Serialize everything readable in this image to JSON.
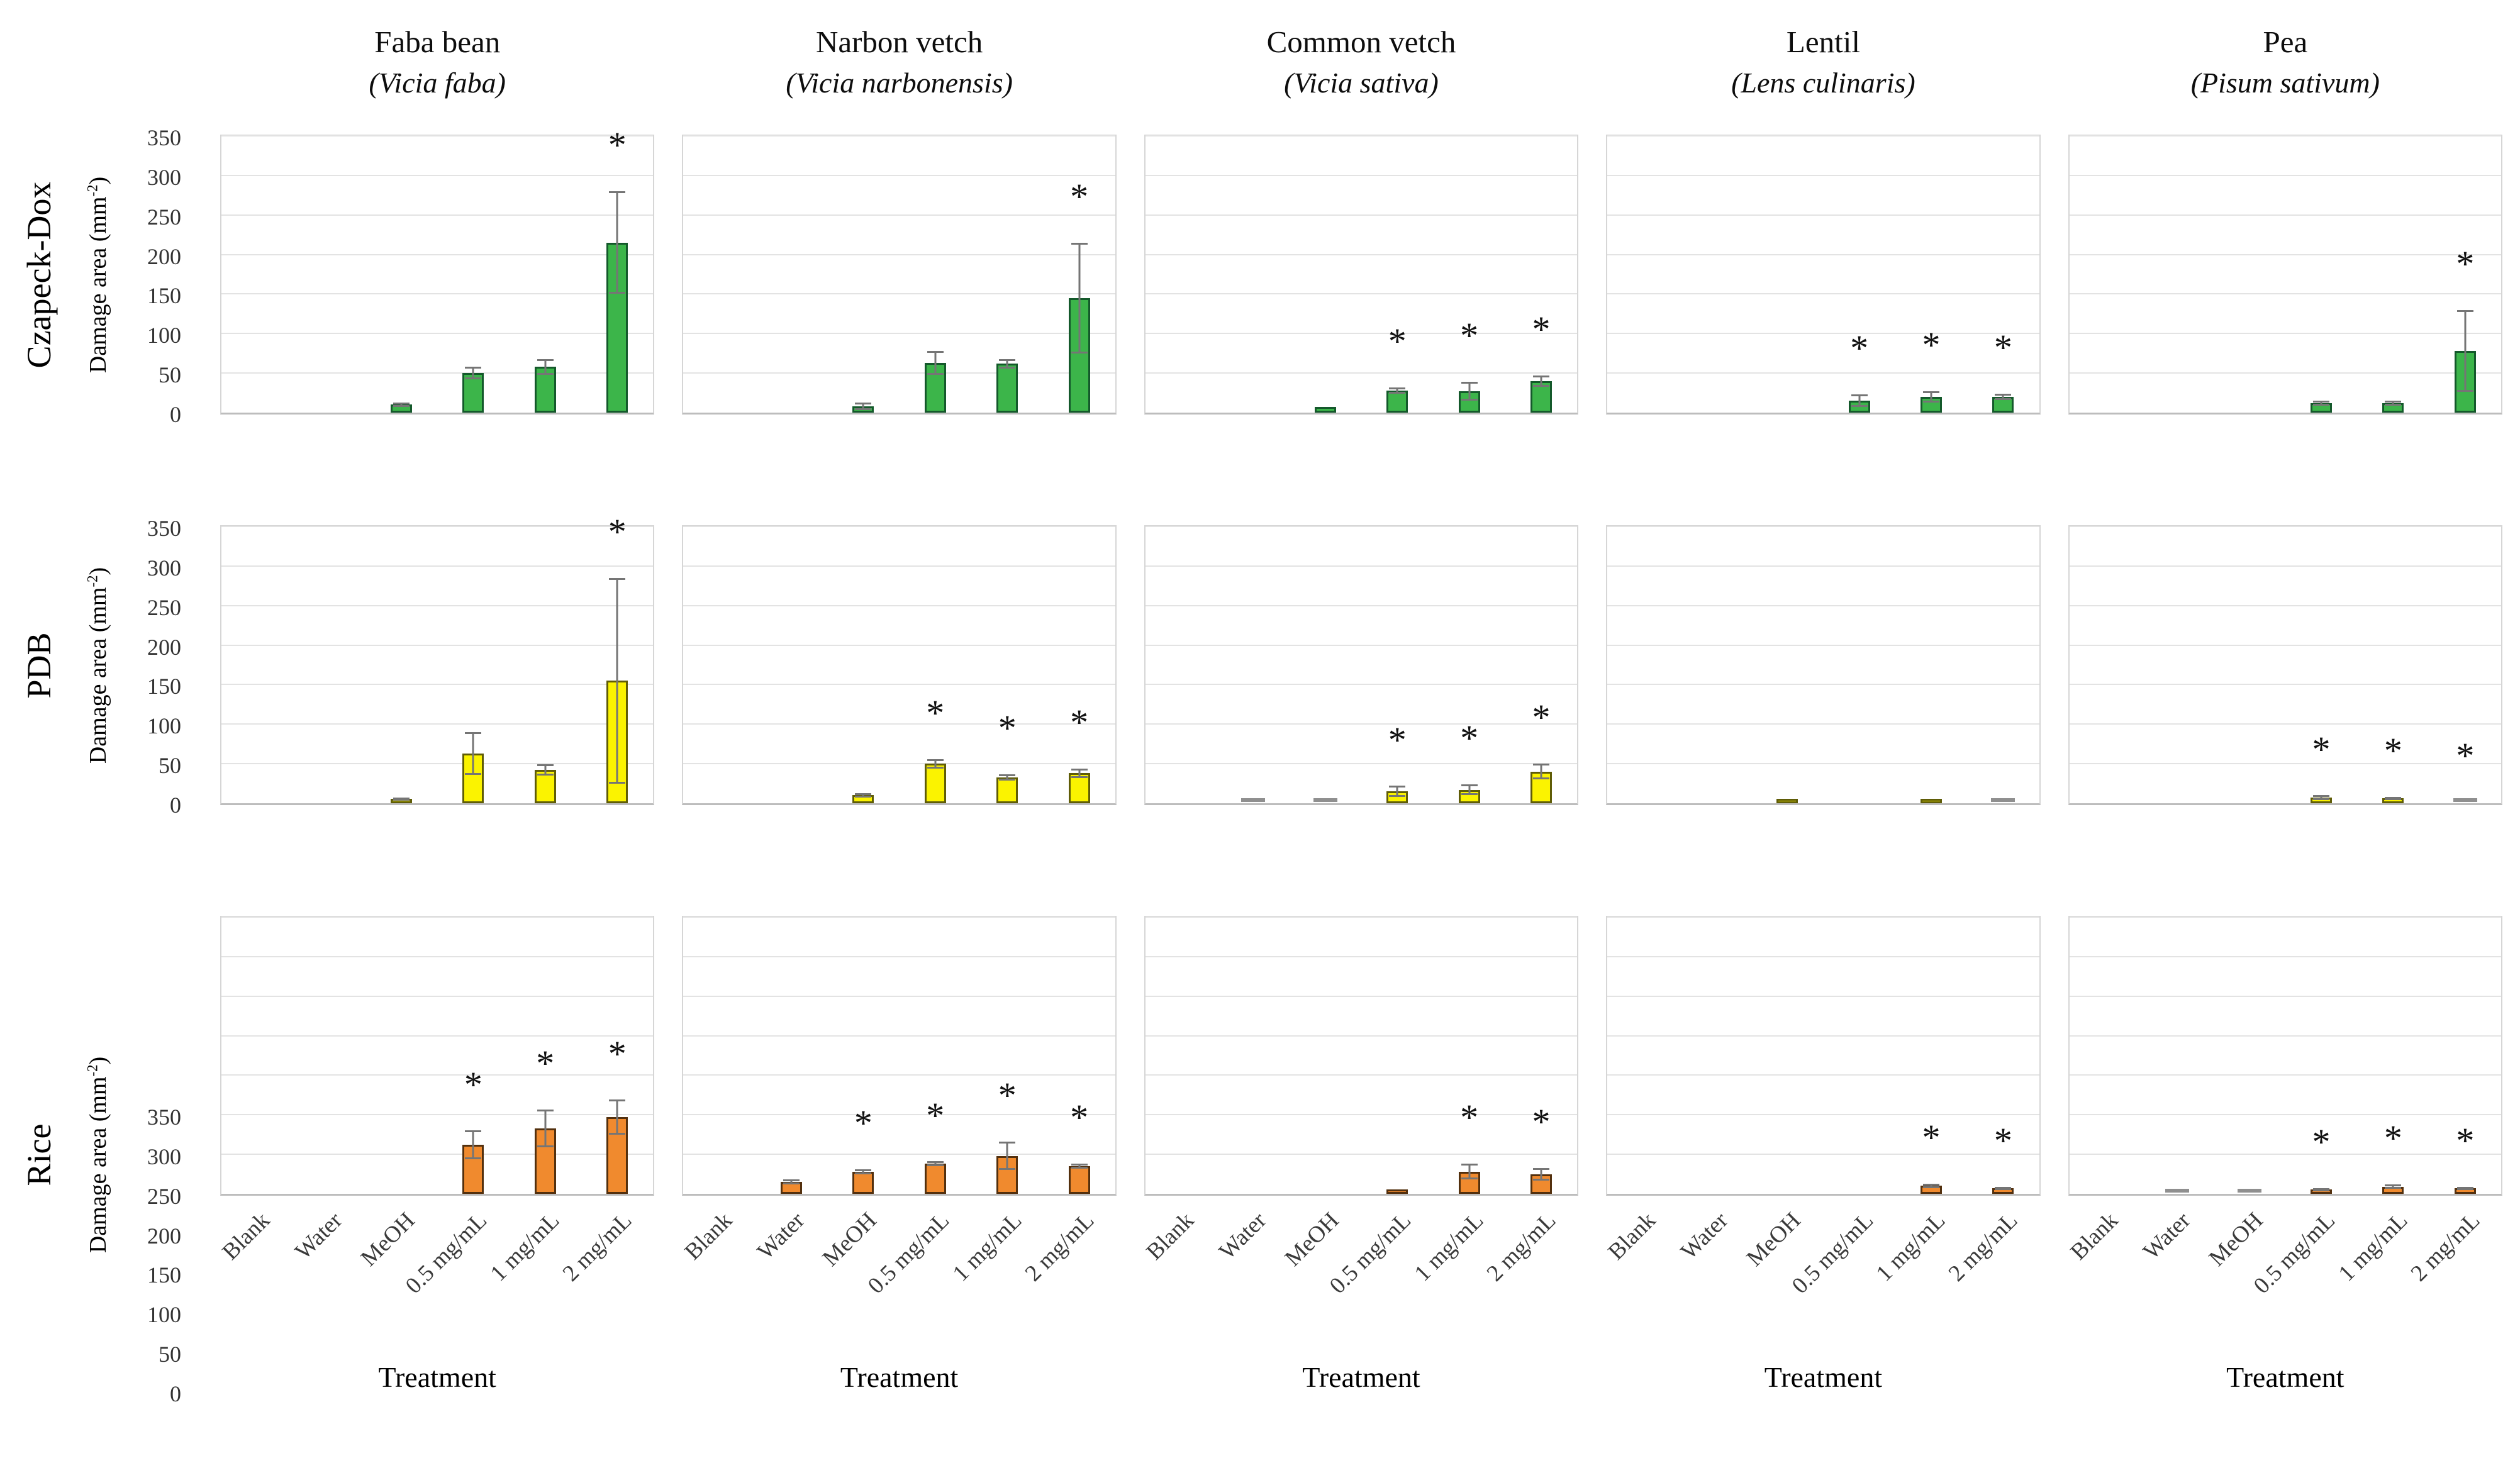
{
  "figure": {
    "ylabel": {
      "prefix": "Damage area (mm",
      "sup": "-2",
      "suffix": ")"
    },
    "xlabel": "Treatment",
    "x_categories": [
      "Blank",
      "Water",
      "MeOH",
      "0.5 mg/mL",
      "1 mg/mL",
      "2 mg/mL"
    ],
    "y_ticks": [
      0,
      50,
      100,
      150,
      200,
      250,
      300,
      350
    ],
    "ylim": [
      0,
      350
    ],
    "significance_symbol": "*",
    "grid": true,
    "columns": [
      {
        "name": "Faba bean",
        "species": "(Vicia faba)"
      },
      {
        "name": "Narbon vetch",
        "species": "(Vicia narbonensis)"
      },
      {
        "name": "Common vetch",
        "species": "(Vicia sativa)"
      },
      {
        "name": "Lentil",
        "species": "(Lens culinaris)"
      },
      {
        "name": "Pea",
        "species": "(Pisum sativum)"
      }
    ],
    "rows": [
      {
        "label": "Czapeck-Dox",
        "fill": "#3cb54a",
        "border": "#14592b"
      },
      {
        "label": "PDB",
        "fill": "#fbf300",
        "border": "#5f5c07"
      },
      {
        "label": "Rice",
        "fill": "#f08a2e",
        "border": "#53300e"
      }
    ],
    "colors": {
      "error_bar": "#757575",
      "gridline": "#e3e3e3",
      "axis_line": "#bdbdbd",
      "gray_dash": "#8f8f8f"
    }
  },
  "chart_data": [
    {
      "type": "bar",
      "medium": "Czapeck-Dox",
      "plant": "Faba bean",
      "species": "Vicia faba",
      "categories": [
        "Blank",
        "Water",
        "MeOH",
        "0.5 mg/mL",
        "1 mg/mL",
        "2 mg/mL"
      ],
      "values": [
        0,
        0,
        10,
        50,
        58,
        215
      ],
      "errors": [
        0,
        0,
        3,
        8,
        10,
        65
      ],
      "significant": [
        false,
        false,
        false,
        false,
        false,
        true
      ],
      "gray_dash": [
        false,
        false,
        false,
        false,
        false,
        false
      ],
      "ylim": [
        0,
        350
      ]
    },
    {
      "type": "bar",
      "medium": "Czapeck-Dox",
      "plant": "Narbon vetch",
      "species": "Vicia narbonensis",
      "categories": [
        "Blank",
        "Water",
        "MeOH",
        "0.5 mg/mL",
        "1 mg/mL",
        "2 mg/mL"
      ],
      "values": [
        0,
        0,
        8,
        63,
        62,
        145
      ],
      "errors": [
        0,
        0,
        5,
        15,
        6,
        70
      ],
      "significant": [
        false,
        false,
        false,
        false,
        false,
        true
      ],
      "gray_dash": [
        false,
        false,
        false,
        false,
        false,
        false
      ],
      "ylim": [
        0,
        350
      ]
    },
    {
      "type": "bar",
      "medium": "Czapeck-Dox",
      "plant": "Common vetch",
      "species": "Vicia sativa",
      "categories": [
        "Blank",
        "Water",
        "MeOH",
        "0.5 mg/mL",
        "1 mg/mL",
        "2 mg/mL"
      ],
      "values": [
        0,
        0,
        7,
        28,
        27,
        40
      ],
      "errors": [
        0,
        0,
        0,
        4,
        12,
        7
      ],
      "significant": [
        false,
        false,
        false,
        true,
        true,
        true
      ],
      "gray_dash": [
        false,
        false,
        false,
        false,
        false,
        false
      ],
      "ylim": [
        0,
        350
      ]
    },
    {
      "type": "bar",
      "medium": "Czapeck-Dox",
      "plant": "Lentil",
      "species": "Lens culinaris",
      "categories": [
        "Blank",
        "Water",
        "MeOH",
        "0.5 mg/mL",
        "1 mg/mL",
        "2 mg/mL"
      ],
      "values": [
        0,
        0,
        0,
        15,
        20,
        20
      ],
      "errors": [
        0,
        0,
        0,
        8,
        7,
        4
      ],
      "significant": [
        false,
        false,
        false,
        true,
        true,
        true
      ],
      "gray_dash": [
        false,
        false,
        false,
        false,
        false,
        false
      ],
      "ylim": [
        0,
        350
      ]
    },
    {
      "type": "bar",
      "medium": "Czapeck-Dox",
      "plant": "Pea",
      "species": "Pisum sativum",
      "categories": [
        "Blank",
        "Water",
        "MeOH",
        "0.5 mg/mL",
        "1 mg/mL",
        "2 mg/mL"
      ],
      "values": [
        0,
        0,
        0,
        12,
        12,
        78
      ],
      "errors": [
        0,
        0,
        0,
        3,
        3,
        52
      ],
      "significant": [
        false,
        false,
        false,
        false,
        false,
        true
      ],
      "gray_dash": [
        false,
        false,
        false,
        false,
        false,
        false
      ],
      "ylim": [
        0,
        350
      ]
    },
    {
      "type": "bar",
      "medium": "PDB",
      "plant": "Faba bean",
      "species": "Vicia faba",
      "categories": [
        "Blank",
        "Water",
        "MeOH",
        "0.5 mg/mL",
        "1 mg/mL",
        "2 mg/mL"
      ],
      "values": [
        0,
        0,
        5,
        63,
        42,
        155
      ],
      "errors": [
        0,
        0,
        2,
        27,
        7,
        130
      ],
      "significant": [
        false,
        false,
        false,
        false,
        false,
        true
      ],
      "gray_dash": [
        false,
        false,
        false,
        false,
        false,
        false
      ],
      "ylim": [
        0,
        350
      ]
    },
    {
      "type": "bar",
      "medium": "PDB",
      "plant": "Narbon vetch",
      "species": "Vicia narbonensis",
      "categories": [
        "Blank",
        "Water",
        "MeOH",
        "0.5 mg/mL",
        "1 mg/mL",
        "2 mg/mL"
      ],
      "values": [
        0,
        0,
        10,
        50,
        33,
        38
      ],
      "errors": [
        0,
        0,
        3,
        6,
        4,
        6
      ],
      "significant": [
        false,
        false,
        false,
        true,
        true,
        true
      ],
      "gray_dash": [
        false,
        false,
        false,
        false,
        false,
        false
      ],
      "ylim": [
        0,
        350
      ]
    },
    {
      "type": "bar",
      "medium": "PDB",
      "plant": "Common vetch",
      "species": "Vicia sativa",
      "categories": [
        "Blank",
        "Water",
        "MeOH",
        "0.5 mg/mL",
        "1 mg/mL",
        "2 mg/mL"
      ],
      "values": [
        0,
        2,
        2,
        15,
        17,
        40
      ],
      "errors": [
        0,
        0,
        0,
        7,
        7,
        10
      ],
      "significant": [
        false,
        false,
        false,
        true,
        true,
        true
      ],
      "gray_dash": [
        false,
        true,
        true,
        false,
        false,
        false
      ],
      "ylim": [
        0,
        350
      ]
    },
    {
      "type": "bar",
      "medium": "PDB",
      "plant": "Lentil",
      "species": "Lens culinaris",
      "categories": [
        "Blank",
        "Water",
        "MeOH",
        "0.5 mg/mL",
        "1 mg/mL",
        "2 mg/mL"
      ],
      "values": [
        0,
        0,
        3,
        0,
        3,
        2
      ],
      "errors": [
        0,
        0,
        0,
        0,
        0,
        0
      ],
      "significant": [
        false,
        false,
        false,
        false,
        false,
        false
      ],
      "gray_dash": [
        false,
        false,
        false,
        false,
        false,
        true
      ],
      "ylim": [
        0,
        350
      ]
    },
    {
      "type": "bar",
      "medium": "PDB",
      "plant": "Pea",
      "species": "Pisum sativum",
      "categories": [
        "Blank",
        "Water",
        "MeOH",
        "0.5 mg/mL",
        "1 mg/mL",
        "2 mg/mL"
      ],
      "values": [
        0,
        0,
        0,
        7,
        6,
        2
      ],
      "errors": [
        0,
        0,
        0,
        3,
        2,
        0
      ],
      "significant": [
        false,
        false,
        false,
        true,
        true,
        true
      ],
      "gray_dash": [
        false,
        false,
        false,
        false,
        false,
        true
      ],
      "ylim": [
        0,
        350
      ]
    },
    {
      "type": "bar",
      "medium": "Rice",
      "plant": "Faba bean",
      "species": "Vicia faba",
      "categories": [
        "Blank",
        "Water",
        "MeOH",
        "0.5 mg/mL",
        "1 mg/mL",
        "2 mg/mL"
      ],
      "values": [
        0,
        0,
        0,
        62,
        83,
        97
      ],
      "errors": [
        0,
        0,
        0,
        18,
        24,
        22
      ],
      "significant": [
        false,
        false,
        false,
        true,
        true,
        true
      ],
      "gray_dash": [
        false,
        false,
        false,
        false,
        false,
        false
      ],
      "ylim": [
        0,
        350
      ]
    },
    {
      "type": "bar",
      "medium": "Rice",
      "plant": "Narbon vetch",
      "species": "Vicia narbonensis",
      "categories": [
        "Blank",
        "Water",
        "MeOH",
        "0.5 mg/mL",
        "1 mg/mL",
        "2 mg/mL"
      ],
      "values": [
        0,
        15,
        28,
        38,
        48,
        35
      ],
      "errors": [
        0,
        3,
        3,
        3,
        18,
        3
      ],
      "significant": [
        false,
        false,
        true,
        true,
        true,
        true
      ],
      "gray_dash": [
        false,
        false,
        false,
        false,
        false,
        false
      ],
      "ylim": [
        0,
        350
      ]
    },
    {
      "type": "bar",
      "medium": "Rice",
      "plant": "Common vetch",
      "species": "Vicia sativa",
      "categories": [
        "Blank",
        "Water",
        "MeOH",
        "0.5 mg/mL",
        "1 mg/mL",
        "2 mg/mL"
      ],
      "values": [
        0,
        0,
        0,
        5,
        28,
        25
      ],
      "errors": [
        0,
        0,
        0,
        0,
        10,
        8
      ],
      "significant": [
        false,
        false,
        false,
        false,
        true,
        true
      ],
      "gray_dash": [
        false,
        false,
        false,
        false,
        false,
        false
      ],
      "ylim": [
        0,
        350
      ]
    },
    {
      "type": "bar",
      "medium": "Rice",
      "plant": "Lentil",
      "species": "Lens culinaris",
      "categories": [
        "Blank",
        "Water",
        "MeOH",
        "0.5 mg/mL",
        "1 mg/mL",
        "2 mg/mL"
      ],
      "values": [
        0,
        0,
        0,
        0,
        10,
        7
      ],
      "errors": [
        0,
        0,
        0,
        0,
        3,
        2
      ],
      "significant": [
        false,
        false,
        false,
        false,
        true,
        true
      ],
      "gray_dash": [
        false,
        false,
        false,
        false,
        false,
        false
      ],
      "ylim": [
        0,
        350
      ]
    },
    {
      "type": "bar",
      "medium": "Rice",
      "plant": "Pea",
      "species": "Pisum sativum",
      "categories": [
        "Blank",
        "Water",
        "MeOH",
        "0.5 mg/mL",
        "1 mg/mL",
        "2 mg/mL"
      ],
      "values": [
        0,
        2,
        2,
        5,
        9,
        7
      ],
      "errors": [
        0,
        0,
        0,
        2,
        3,
        2
      ],
      "significant": [
        false,
        false,
        false,
        true,
        true,
        true
      ],
      "gray_dash": [
        false,
        true,
        true,
        false,
        false,
        false
      ],
      "ylim": [
        0,
        350
      ]
    }
  ]
}
